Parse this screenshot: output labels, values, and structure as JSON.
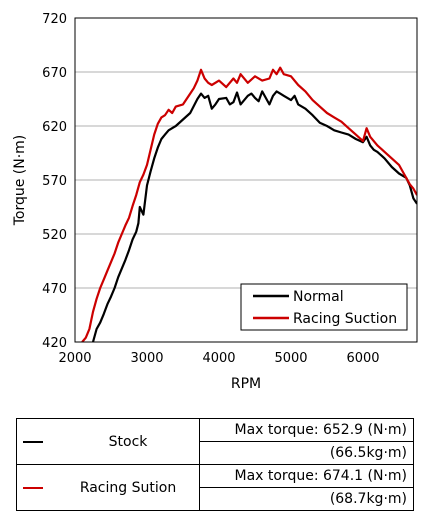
{
  "chart_data": {
    "type": "line",
    "xlabel": "RPM",
    "ylabel": "Torque (N·m)",
    "xlim": [
      2000,
      6750
    ],
    "ylim": [
      420,
      720
    ],
    "xticks": [
      "2000",
      "3000",
      "4000",
      "5000",
      "6000"
    ],
    "yticks": [
      "420",
      "470",
      "520",
      "570",
      "620",
      "670",
      "720"
    ],
    "grid": "horizontal",
    "legend_position": "bottom-right",
    "series": [
      {
        "name": "Normal",
        "color": "#000000",
        "x": [
          2250,
          2300,
          2350,
          2400,
          2450,
          2500,
          2550,
          2600,
          2650,
          2700,
          2750,
          2800,
          2850,
          2880,
          2900,
          2950,
          3000,
          3050,
          3100,
          3150,
          3200,
          3250,
          3300,
          3400,
          3500,
          3600,
          3700,
          3750,
          3800,
          3850,
          3900,
          3950,
          4000,
          4100,
          4150,
          4200,
          4250,
          4300,
          4400,
          4450,
          4500,
          4550,
          4600,
          4700,
          4750,
          4800,
          4850,
          4900,
          5000,
          5050,
          5100,
          5200,
          5300,
          5400,
          5500,
          5600,
          5700,
          5800,
          5900,
          6000,
          6050,
          6100,
          6150,
          6200,
          6300,
          6400,
          6500,
          6600,
          6650,
          6700,
          6750
        ],
        "values": [
          420,
          432,
          438,
          446,
          455,
          462,
          470,
          480,
          488,
          496,
          505,
          515,
          522,
          530,
          545,
          538,
          565,
          578,
          590,
          600,
          608,
          612,
          616,
          620,
          626,
          632,
          645,
          650,
          646,
          648,
          636,
          640,
          645,
          646,
          640,
          642,
          651,
          640,
          648,
          650,
          646,
          643,
          652,
          640,
          648,
          652,
          650,
          648,
          644,
          648,
          640,
          636,
          630,
          623,
          620,
          616,
          614,
          612,
          608,
          605,
          610,
          602,
          598,
          596,
          590,
          582,
          576,
          572,
          565,
          553,
          548
        ]
      },
      {
        "name": "Racing Suction",
        "color": "#cc0000",
        "x": [
          2100,
          2150,
          2200,
          2250,
          2300,
          2350,
          2400,
          2450,
          2500,
          2550,
          2600,
          2650,
          2700,
          2750,
          2800,
          2850,
          2900,
          2950,
          3000,
          3050,
          3100,
          3150,
          3200,
          3250,
          3300,
          3350,
          3400,
          3500,
          3550,
          3600,
          3650,
          3700,
          3750,
          3800,
          3850,
          3900,
          4000,
          4100,
          4200,
          4250,
          4300,
          4400,
          4500,
          4600,
          4700,
          4750,
          4800,
          4850,
          4900,
          5000,
          5100,
          5200,
          5300,
          5400,
          5500,
          5600,
          5700,
          5800,
          5900,
          6000,
          6050,
          6100,
          6200,
          6300,
          6400,
          6500,
          6550,
          6600,
          6650,
          6700,
          6750
        ],
        "values": [
          420,
          424,
          432,
          448,
          460,
          470,
          478,
          486,
          494,
          502,
          512,
          520,
          528,
          535,
          546,
          556,
          568,
          575,
          584,
          598,
          612,
          622,
          628,
          630,
          635,
          632,
          638,
          640,
          645,
          650,
          655,
          662,
          672,
          664,
          660,
          658,
          662,
          656,
          664,
          660,
          668,
          660,
          666,
          662,
          664,
          672,
          668,
          674,
          668,
          666,
          658,
          652,
          644,
          638,
          632,
          628,
          624,
          618,
          612,
          606,
          618,
          610,
          602,
          596,
          590,
          584,
          578,
          572,
          566,
          562,
          556
        ]
      }
    ]
  },
  "summary_table": {
    "rows": [
      {
        "label": "Stock",
        "color": "#000000",
        "line1": "Max torque: 652.9 (N·m)",
        "line2": "(66.5kg·m)"
      },
      {
        "label": "Racing Sution",
        "color": "#cc0000",
        "line1": "Max torque: 674.1 (N·m)",
        "line2": "(68.7kg·m)"
      }
    ]
  }
}
